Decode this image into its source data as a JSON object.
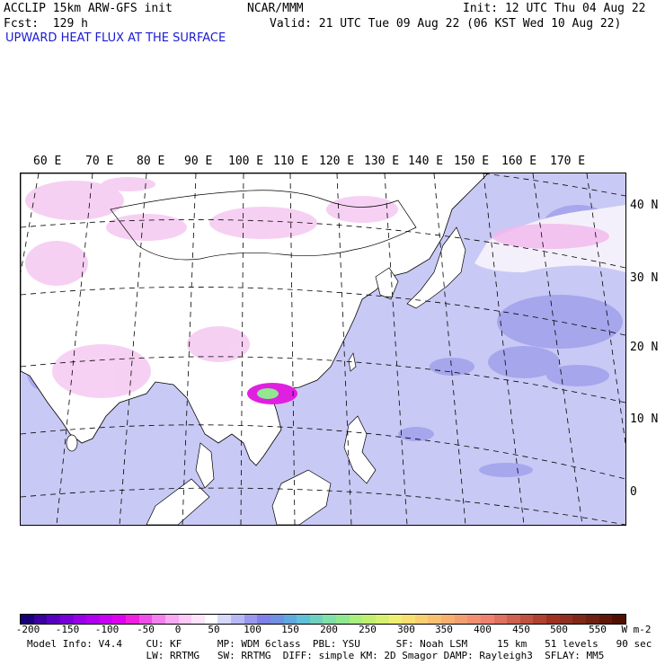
{
  "header": {
    "model_line": "ACCLIP 15km ARW-GFS init",
    "center": "NCAR/MMM",
    "init": "Init: 12 UTC Thu 04 Aug 22",
    "fcst": "Fcst:  129 h",
    "valid": "Valid: 21 UTC Tue 09 Aug 22 (06 KST Wed 10 Aug 22)",
    "field": "UPWARD HEAT FLUX AT THE SURFACE"
  },
  "map": {
    "lon_labels": [
      "60 E",
      "70 E",
      "80 E",
      "90 E",
      "100 E",
      "110 E",
      "120 E",
      "130 E",
      "140 E",
      "150 E",
      "160 E",
      "170 E"
    ],
    "lat_labels": [
      "40 N",
      "30 N",
      "20 N",
      "10 N",
      "0"
    ],
    "colors": {
      "ocean": "#c9c9f5",
      "land": "#ffffff",
      "pink": "#f4c6f0",
      "deep_blue": "#8a8ae8",
      "hotspot_magenta": "#e020e0",
      "hotspot_green": "#90e890"
    }
  },
  "colorbar": {
    "ticks": [
      "-200",
      "-150",
      "-100",
      "-50",
      "0",
      "50",
      "100",
      "150",
      "200",
      "250",
      "300",
      "350",
      "400",
      "450",
      "500",
      "550"
    ],
    "units": "W m-2",
    "colors": [
      "#1a0078",
      "#3a00a0",
      "#5800c0",
      "#7800d8",
      "#9800e8",
      "#b000f0",
      "#c800f4",
      "#e000f0",
      "#f020e0",
      "#f050e8",
      "#f480ee",
      "#f8aaf2",
      "#fccaf6",
      "#fee4fa",
      "#ffffff",
      "#d8d8fa",
      "#b8b8f4",
      "#9898ee",
      "#8080e8",
      "#7090e0",
      "#60a8e0",
      "#60c0d8",
      "#70d0c0",
      "#80e0a8",
      "#90e890",
      "#a8f080",
      "#c0f070",
      "#d8f070",
      "#f0f070",
      "#f8e070",
      "#f8d070",
      "#f8c070",
      "#f8b070",
      "#f0a070",
      "#f09070",
      "#f08070",
      "#e07060",
      "#d06050",
      "#c05040",
      "#b04030",
      "#a03020",
      "#903020",
      "#802818",
      "#702010",
      "#601808",
      "#501000"
    ]
  },
  "footer": {
    "line1": "Model Info: V4.4    CU: KF      MP: WDM 6class  PBL: YSU      SF: Noah LSM     15 km   51 levels   90 sec",
    "line2": "                    LW: RRTMG   SW: RRTMG  DIFF: simple KM: 2D Smagor DAMP: Rayleigh3  SFLAY: MM5"
  }
}
